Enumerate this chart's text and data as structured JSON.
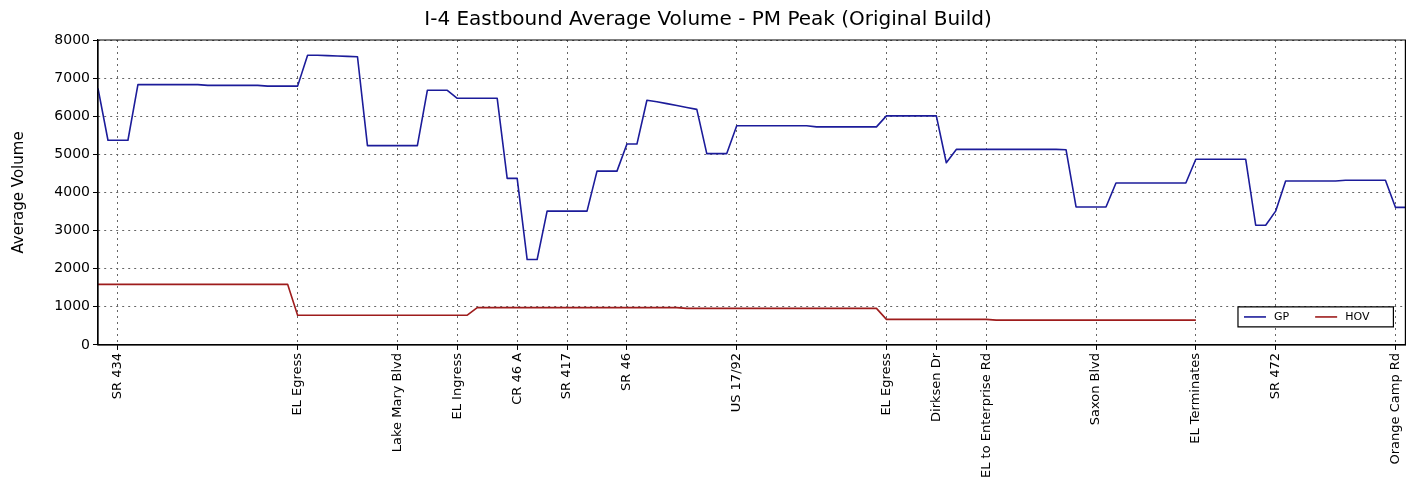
{
  "chart_data": {
    "type": "line",
    "title": "I-4 Eastbound Average Volume - PM Peak (Original Build)",
    "ylabel": "Average Volume",
    "categories": [
      null,
      null,
      "SR 434",
      null,
      null,
      null,
      null,
      null,
      null,
      null,
      null,
      null,
      null,
      null,
      null,
      null,
      null,
      null,
      null,
      null,
      "EL Egress",
      null,
      null,
      null,
      null,
      null,
      null,
      null,
      null,
      null,
      "Lake Mary Blvd",
      null,
      null,
      null,
      null,
      null,
      "EL Ingress",
      null,
      null,
      null,
      null,
      null,
      "CR 46 A",
      null,
      null,
      null,
      null,
      "SR 417",
      null,
      null,
      null,
      null,
      null,
      "SR 46",
      null,
      null,
      null,
      null,
      null,
      null,
      null,
      null,
      null,
      null,
      "US 17/92",
      null,
      null,
      null,
      null,
      null,
      null,
      null,
      null,
      null,
      null,
      null,
      null,
      null,
      null,
      "EL Egress",
      null,
      null,
      null,
      null,
      "Dirksen Dr",
      null,
      null,
      null,
      null,
      "EL to Enterprise Rd",
      null,
      null,
      null,
      null,
      null,
      null,
      null,
      null,
      null,
      null,
      "Saxon Blvd",
      null,
      null,
      null,
      null,
      null,
      null,
      null,
      null,
      null,
      "EL Terminates",
      null,
      null,
      null,
      null,
      null,
      null,
      null,
      "SR 472",
      null,
      null,
      null,
      null,
      null,
      null,
      null,
      null,
      null,
      null,
      null,
      "Orange Camp Rd",
      null
    ],
    "ylim": [
      0,
      8000
    ],
    "yticks": [
      0,
      1000,
      2000,
      3000,
      4000,
      5000,
      6000,
      7000,
      8000
    ],
    "grid": true,
    "legend": "bottom right",
    "series": [
      {
        "name": "GP",
        "color": "#1c1c9a",
        "values": [
          6730,
          5370,
          5370,
          5370,
          6830,
          6830,
          6830,
          6830,
          6830,
          6830,
          6830,
          6810,
          6810,
          6810,
          6810,
          6810,
          6810,
          6790,
          6790,
          6790,
          6790,
          7600,
          7600,
          7590,
          7580,
          7570,
          7560,
          5230,
          5230,
          5230,
          5230,
          5230,
          5230,
          6680,
          6680,
          6680,
          6470,
          6470,
          6470,
          6470,
          6470,
          4370,
          4370,
          2240,
          2240,
          3510,
          3510,
          3510,
          3510,
          3510,
          4560,
          4560,
          4560,
          5270,
          5270,
          6420,
          6380,
          6330,
          6280,
          6230,
          6180,
          5020,
          5020,
          5020,
          5750,
          5750,
          5750,
          5750,
          5750,
          5750,
          5750,
          5750,
          5720,
          5720,
          5720,
          5720,
          5720,
          5720,
          5720,
          6010,
          6010,
          6010,
          6010,
          6010,
          6010,
          4780,
          5130,
          5130,
          5130,
          5130,
          5130,
          5130,
          5130,
          5130,
          5130,
          5130,
          5130,
          5120,
          3620,
          3620,
          3620,
          3620,
          4250,
          4250,
          4250,
          4250,
          4250,
          4250,
          4250,
          4250,
          4870,
          4870,
          4870,
          4870,
          4870,
          4870,
          3140,
          3140,
          3510,
          4300,
          4300,
          4300,
          4300,
          4300,
          4300,
          4320,
          4320,
          4320,
          4320,
          4320,
          3610,
          3610
        ]
      },
      {
        "name": "HOV",
        "color": "#9e1c1c",
        "values": [
          1590,
          1590,
          1590,
          1590,
          1590,
          1590,
          1590,
          1590,
          1590,
          1590,
          1590,
          1590,
          1590,
          1590,
          1590,
          1590,
          1590,
          1590,
          1590,
          1590,
          780,
          780,
          780,
          780,
          780,
          780,
          780,
          780,
          780,
          780,
          780,
          780,
          780,
          780,
          780,
          780,
          780,
          780,
          980,
          980,
          980,
          980,
          980,
          980,
          980,
          980,
          980,
          980,
          980,
          980,
          980,
          980,
          980,
          980,
          980,
          980,
          980,
          980,
          980,
          960,
          960,
          960,
          960,
          960,
          960,
          960,
          960,
          960,
          960,
          960,
          960,
          960,
          960,
          960,
          960,
          960,
          960,
          960,
          960,
          670,
          670,
          670,
          670,
          670,
          670,
          670,
          670,
          670,
          670,
          670,
          650,
          650,
          650,
          650,
          650,
          650,
          650,
          650,
          650,
          650,
          650,
          650,
          650,
          650,
          650,
          650,
          650,
          650,
          650,
          650,
          650,
          null,
          null,
          null,
          null,
          null,
          null,
          null,
          null,
          null,
          null,
          null,
          null,
          null,
          null,
          null,
          null,
          null,
          null,
          null,
          null,
          null
        ]
      }
    ]
  }
}
